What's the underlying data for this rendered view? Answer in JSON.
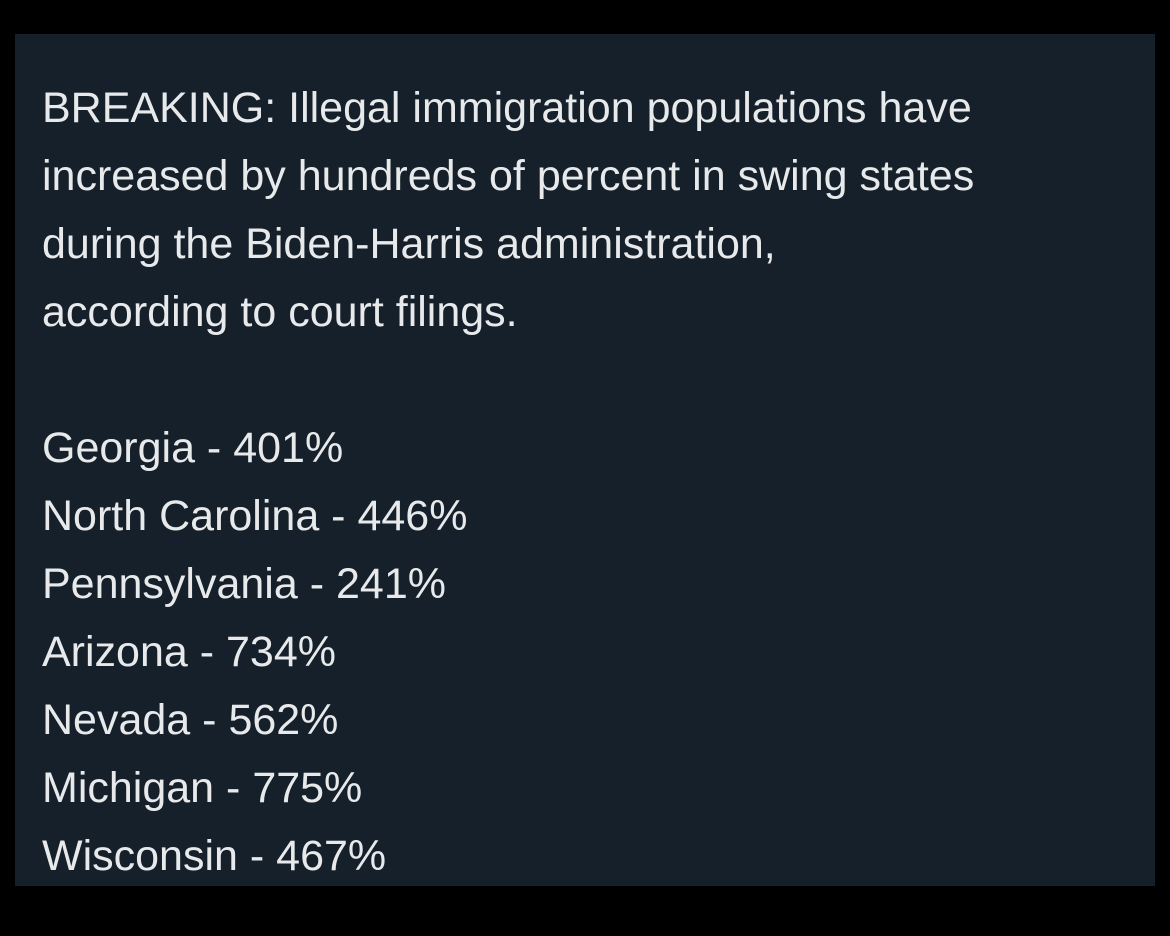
{
  "tweet": {
    "headline_lines": [
      "BREAKING: Illegal immigration populations have",
      "increased by hundreds of percent in swing states",
      "during the Biden-Harris administration,",
      "according to court filings."
    ],
    "stats": [
      {
        "state": "Georgia",
        "separator": " - ",
        "value": "401%"
      },
      {
        "state": "North Carolina",
        "separator": " - ",
        "value": "446%"
      },
      {
        "state": "Pennsylvania",
        "separator": " - ",
        "value": "241%"
      },
      {
        "state": "Arizona",
        "separator": " - ",
        "value": "734%"
      },
      {
        "state": "Nevada",
        "separator": " - ",
        "value": "562%"
      },
      {
        "state": "Michigan",
        "separator": " - ",
        "value": "775%"
      },
      {
        "state": "Wisconsin",
        "separator": " - ",
        "value": "467%"
      }
    ]
  },
  "colors": {
    "page_background": "#000000",
    "card_background": "#15202b",
    "text": "#e7e9ea"
  }
}
